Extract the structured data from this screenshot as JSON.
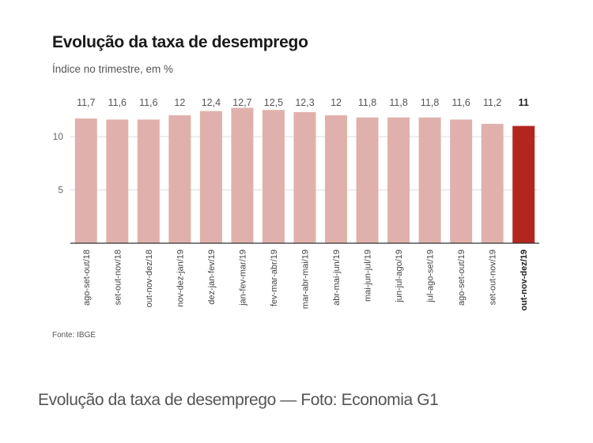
{
  "chart_data": {
    "type": "bar",
    "title": "Evolução da taxa de desemprego",
    "subtitle": "Índice no trimestre, em %",
    "categories": [
      "ago-set-out/18",
      "set-out-nov/18",
      "out-nov-dez/18",
      "nov-dez-jan/19",
      "dez-jan-fev/19",
      "jan-fev-mar/19",
      "fev-mar-abr/19",
      "mar-abr-mai/19",
      "abr-mai-jun/19",
      "mai-jun-jul/19",
      "jun-jul-ago/19",
      "jul-ago-set/19",
      "ago-set-out/19",
      "set-out-nov/19",
      "out-nov-dez/19"
    ],
    "values": [
      11.7,
      11.6,
      11.6,
      12,
      12.4,
      12.7,
      12.5,
      12.3,
      12,
      11.8,
      11.8,
      11.8,
      11.6,
      11.2,
      11
    ],
    "value_labels": [
      "11,7",
      "11,6",
      "11,6",
      "12",
      "12,4",
      "12,7",
      "12,5",
      "12,3",
      "12",
      "11,8",
      "11,8",
      "11,8",
      "11,6",
      "11,2",
      "11"
    ],
    "yticks": [
      5,
      10
    ],
    "ylim": [
      0,
      13.5
    ],
    "highlight_index": 14,
    "colors": {
      "bar": "#e0b1ac",
      "highlight": "#b3261e",
      "grid": "#dddddd",
      "axis": "#333333"
    }
  },
  "source": "Fonte: IBGE",
  "caption": "Evolução da taxa de desemprego — Foto: Economia G1"
}
